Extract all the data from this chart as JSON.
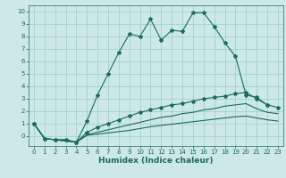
{
  "xlabel": "Humidex (Indice chaleur)",
  "bg_color": "#cce8e8",
  "grid_color": "#99cccc",
  "line_color": "#1a6b5a",
  "xlim": [
    -0.5,
    23.5
  ],
  "ylim": [
    -0.8,
    10.5
  ],
  "xticks": [
    0,
    1,
    2,
    3,
    4,
    5,
    6,
    7,
    8,
    9,
    10,
    11,
    12,
    13,
    14,
    15,
    16,
    17,
    18,
    19,
    20,
    21,
    22,
    23
  ],
  "yticks": [
    0,
    1,
    2,
    3,
    4,
    5,
    6,
    7,
    8,
    9,
    10
  ],
  "line1_x": [
    0,
    1,
    2,
    3,
    4,
    5,
    6,
    7,
    8,
    9,
    10,
    11,
    12,
    13,
    14,
    15,
    16,
    17,
    18,
    19,
    20,
    21,
    22
  ],
  "line1_y": [
    1.0,
    -0.2,
    -0.3,
    -0.3,
    -0.5,
    1.2,
    3.3,
    5.0,
    6.7,
    8.2,
    8.0,
    9.4,
    7.7,
    8.5,
    8.4,
    9.9,
    9.9,
    8.8,
    7.5,
    6.4,
    3.3,
    3.1,
    2.5
  ],
  "line2_x": [
    0,
    1,
    2,
    3,
    4,
    5,
    6,
    7,
    8,
    9,
    10,
    11,
    12,
    13,
    14,
    15,
    16,
    17,
    18,
    19,
    20,
    21,
    22,
    23
  ],
  "line2_y": [
    1.0,
    -0.2,
    -0.3,
    -0.3,
    -0.5,
    0.3,
    0.7,
    1.0,
    1.3,
    1.6,
    1.9,
    2.1,
    2.3,
    2.5,
    2.6,
    2.8,
    3.0,
    3.1,
    3.2,
    3.4,
    3.5,
    3.0,
    2.5,
    2.3
  ],
  "line3_x": [
    0,
    1,
    2,
    3,
    4,
    5,
    6,
    7,
    8,
    9,
    10,
    11,
    12,
    13,
    14,
    15,
    16,
    17,
    18,
    19,
    20,
    21,
    22,
    23
  ],
  "line3_y": [
    1.0,
    -0.2,
    -0.3,
    -0.4,
    -0.5,
    0.1,
    0.3,
    0.5,
    0.7,
    0.9,
    1.1,
    1.3,
    1.5,
    1.6,
    1.8,
    1.9,
    2.1,
    2.2,
    2.4,
    2.5,
    2.6,
    2.2,
    1.9,
    1.8
  ],
  "line4_x": [
    0,
    1,
    2,
    3,
    4,
    5,
    6,
    7,
    8,
    9,
    10,
    11,
    12,
    13,
    14,
    15,
    16,
    17,
    18,
    19,
    20,
    21,
    22,
    23
  ],
  "line4_y": [
    1.0,
    -0.2,
    -0.3,
    -0.4,
    -0.5,
    0.05,
    0.15,
    0.25,
    0.35,
    0.45,
    0.6,
    0.75,
    0.85,
    0.95,
    1.05,
    1.15,
    1.25,
    1.35,
    1.45,
    1.55,
    1.6,
    1.45,
    1.3,
    1.2
  ],
  "xlabel_fontsize": 6.5,
  "tick_fontsize": 5.0,
  "linewidth": 0.8,
  "markersize": 3.0
}
